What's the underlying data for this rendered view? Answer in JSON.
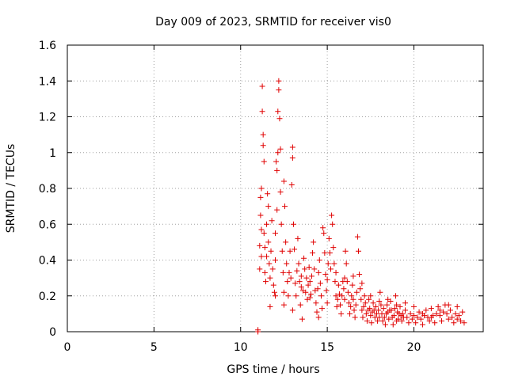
{
  "chart_data": {
    "type": "scatter",
    "title": "Day 009 of 2023, SRMTID for receiver vis0",
    "xlabel": "GPS time / hours",
    "ylabel": "SRMTID / TECUs",
    "xlim": [
      0,
      24
    ],
    "ylim": [
      0,
      1.6
    ],
    "xticks": [
      0,
      5,
      10,
      15,
      20
    ],
    "xtick_labels": [
      "0",
      "5",
      "10",
      "15",
      "20"
    ],
    "yticks": [
      0,
      0.2,
      0.4,
      0.6,
      0.8,
      1,
      1.2,
      1.4,
      1.6
    ],
    "ytick_labels": [
      "0",
      "0.2",
      "0.4",
      "0.6",
      "0.8",
      "1",
      "1.2",
      "1.4",
      "1.6"
    ],
    "grid": true,
    "marker": "+",
    "series": [
      {
        "name": "SRMTID",
        "color": "#e00000",
        "points": [
          [
            11.0,
            0.0
          ],
          [
            11.0,
            0.01
          ],
          [
            11.1,
            0.35
          ],
          [
            11.1,
            0.48
          ],
          [
            11.15,
            0.65
          ],
          [
            11.15,
            0.75
          ],
          [
            11.2,
            0.8
          ],
          [
            11.2,
            0.57
          ],
          [
            11.2,
            0.42
          ],
          [
            11.25,
            1.37
          ],
          [
            11.25,
            1.23
          ],
          [
            11.3,
            1.1
          ],
          [
            11.3,
            1.04
          ],
          [
            11.35,
            0.95
          ],
          [
            11.35,
            0.55
          ],
          [
            11.4,
            0.47
          ],
          [
            11.4,
            0.33
          ],
          [
            11.45,
            0.28
          ],
          [
            11.5,
            0.42
          ],
          [
            11.5,
            0.6
          ],
          [
            11.55,
            0.77
          ],
          [
            11.6,
            0.7
          ],
          [
            11.6,
            0.5
          ],
          [
            11.65,
            0.38
          ],
          [
            11.7,
            0.3
          ],
          [
            11.7,
            0.14
          ],
          [
            11.75,
            0.45
          ],
          [
            11.8,
            0.62
          ],
          [
            11.85,
            0.35
          ],
          [
            11.9,
            0.26
          ],
          [
            11.95,
            0.22
          ],
          [
            12.0,
            0.4
          ],
          [
            12.0,
            0.55
          ],
          [
            12.05,
            0.95
          ],
          [
            12.1,
            0.9
          ],
          [
            12.1,
            0.68
          ],
          [
            12.15,
            1.0
          ],
          [
            12.15,
            1.23
          ],
          [
            12.2,
            1.4
          ],
          [
            12.2,
            1.35
          ],
          [
            12.25,
            1.19
          ],
          [
            12.3,
            1.02
          ],
          [
            12.3,
            0.78
          ],
          [
            12.35,
            0.6
          ],
          [
            12.4,
            0.45
          ],
          [
            12.45,
            0.33
          ],
          [
            12.5,
            0.22
          ],
          [
            12.5,
            0.84
          ],
          [
            12.55,
            0.7
          ],
          [
            12.6,
            0.5
          ],
          [
            12.65,
            0.38
          ],
          [
            12.7,
            0.28
          ],
          [
            12.75,
            0.2
          ],
          [
            12.8,
            0.33
          ],
          [
            12.85,
            0.45
          ],
          [
            12.9,
            0.3
          ],
          [
            12.95,
            0.82
          ],
          [
            13.0,
            1.03
          ],
          [
            13.0,
            0.97
          ],
          [
            13.05,
            0.6
          ],
          [
            13.1,
            0.46
          ],
          [
            13.15,
            0.27
          ],
          [
            13.2,
            0.2
          ],
          [
            13.25,
            0.34
          ],
          [
            13.3,
            0.52
          ],
          [
            13.35,
            0.38
          ],
          [
            13.4,
            0.28
          ],
          [
            13.45,
            0.15
          ],
          [
            13.5,
            0.31
          ],
          [
            13.55,
            0.07
          ],
          [
            13.6,
            0.23
          ],
          [
            13.65,
            0.41
          ],
          [
            13.7,
            0.35
          ],
          [
            13.75,
            0.22
          ],
          [
            13.8,
            0.3
          ],
          [
            13.85,
            0.18
          ],
          [
            13.9,
            0.26
          ],
          [
            13.95,
            0.36
          ],
          [
            14.0,
            0.28
          ],
          [
            14.05,
            0.21
          ],
          [
            14.1,
            0.31
          ],
          [
            14.15,
            0.44
          ],
          [
            14.2,
            0.5
          ],
          [
            14.25,
            0.35
          ],
          [
            14.3,
            0.23
          ],
          [
            14.35,
            0.16
          ],
          [
            14.4,
            0.11
          ],
          [
            14.45,
            0.24
          ],
          [
            14.5,
            0.33
          ],
          [
            14.55,
            0.4
          ],
          [
            14.6,
            0.27
          ],
          [
            14.65,
            0.2
          ],
          [
            14.7,
            0.13
          ],
          [
            14.75,
            0.58
          ],
          [
            14.8,
            0.55
          ],
          [
            14.85,
            0.44
          ],
          [
            14.9,
            0.32
          ],
          [
            14.95,
            0.23
          ],
          [
            15.0,
            0.16
          ],
          [
            15.05,
            0.38
          ],
          [
            15.1,
            0.52
          ],
          [
            15.15,
            0.44
          ],
          [
            15.2,
            0.35
          ],
          [
            15.25,
            0.65
          ],
          [
            15.3,
            0.6
          ],
          [
            15.35,
            0.47
          ],
          [
            15.4,
            0.38
          ],
          [
            15.45,
            0.28
          ],
          [
            15.5,
            0.2
          ],
          [
            15.55,
            0.14
          ],
          [
            15.6,
            0.18
          ],
          [
            15.65,
            0.26
          ],
          [
            15.7,
            0.21
          ],
          [
            15.75,
            0.15
          ],
          [
            15.8,
            0.1
          ],
          [
            15.85,
            0.2
          ],
          [
            15.9,
            0.28
          ],
          [
            15.95,
            0.24
          ],
          [
            16.0,
            0.18
          ],
          [
            16.05,
            0.45
          ],
          [
            16.1,
            0.38
          ],
          [
            16.15,
            0.28
          ],
          [
            16.2,
            0.22
          ],
          [
            16.25,
            0.16
          ],
          [
            16.3,
            0.1
          ],
          [
            16.35,
            0.14
          ],
          [
            16.4,
            0.2
          ],
          [
            16.45,
            0.26
          ],
          [
            16.5,
            0.18
          ],
          [
            16.55,
            0.12
          ],
          [
            16.6,
            0.08
          ],
          [
            16.65,
            0.15
          ],
          [
            16.7,
            0.22
          ],
          [
            16.75,
            0.53
          ],
          [
            16.8,
            0.45
          ],
          [
            16.85,
            0.32
          ],
          [
            16.9,
            0.24
          ],
          [
            16.95,
            0.18
          ],
          [
            17.0,
            0.12
          ],
          [
            17.05,
            0.08
          ],
          [
            17.1,
            0.14
          ],
          [
            17.15,
            0.2
          ],
          [
            17.2,
            0.16
          ],
          [
            17.25,
            0.1
          ],
          [
            17.3,
            0.06
          ],
          [
            17.35,
            0.12
          ],
          [
            17.4,
            0.18
          ],
          [
            17.45,
            0.13
          ],
          [
            17.5,
            0.09
          ],
          [
            17.55,
            0.05
          ],
          [
            17.6,
            0.11
          ],
          [
            17.65,
            0.16
          ],
          [
            17.7,
            0.12
          ],
          [
            17.75,
            0.08
          ],
          [
            17.8,
            0.14
          ],
          [
            17.85,
            0.1
          ],
          [
            17.9,
            0.06
          ],
          [
            17.95,
            0.12
          ],
          [
            18.0,
            0.17
          ],
          [
            18.05,
            0.22
          ],
          [
            18.1,
            0.15
          ],
          [
            18.15,
            0.1
          ],
          [
            18.2,
            0.06
          ],
          [
            18.25,
            0.13
          ],
          [
            18.3,
            0.08
          ],
          [
            18.35,
            0.04
          ],
          [
            18.4,
            0.1
          ],
          [
            18.45,
            0.15
          ],
          [
            18.5,
            0.11
          ],
          [
            18.55,
            0.07
          ],
          [
            18.6,
            0.12
          ],
          [
            18.65,
            0.17
          ],
          [
            18.7,
            0.12
          ],
          [
            18.75,
            0.08
          ],
          [
            18.8,
            0.04
          ],
          [
            18.85,
            0.09
          ],
          [
            18.9,
            0.13
          ],
          [
            18.95,
            0.2
          ],
          [
            19.0,
            0.15
          ],
          [
            19.05,
            0.11
          ],
          [
            19.1,
            0.07
          ],
          [
            19.15,
            0.1
          ],
          [
            19.2,
            0.14
          ],
          [
            19.25,
            0.09
          ],
          [
            19.3,
            0.06
          ],
          [
            19.35,
            0.1
          ],
          [
            19.4,
            0.08
          ],
          [
            19.5,
            0.12
          ],
          [
            19.6,
            0.08
          ],
          [
            19.7,
            0.05
          ],
          [
            19.8,
            0.1
          ],
          [
            19.9,
            0.07
          ],
          [
            20.0,
            0.09
          ],
          [
            20.1,
            0.05
          ],
          [
            20.2,
            0.08
          ],
          [
            20.3,
            0.11
          ],
          [
            20.4,
            0.07
          ],
          [
            20.5,
            0.04
          ],
          [
            20.6,
            0.09
          ],
          [
            20.7,
            0.12
          ],
          [
            20.8,
            0.08
          ],
          [
            20.9,
            0.06
          ],
          [
            21.0,
            0.13
          ],
          [
            21.1,
            0.09
          ],
          [
            21.2,
            0.05
          ],
          [
            21.3,
            0.1
          ],
          [
            21.4,
            0.14
          ],
          [
            21.5,
            0.09
          ],
          [
            21.6,
            0.06
          ],
          [
            21.7,
            0.11
          ],
          [
            21.8,
            0.15
          ],
          [
            21.9,
            0.1
          ],
          [
            22.0,
            0.07
          ],
          [
            22.1,
            0.12
          ],
          [
            22.2,
            0.08
          ],
          [
            22.3,
            0.05
          ],
          [
            22.4,
            0.1
          ],
          [
            22.5,
            0.14
          ],
          [
            22.6,
            0.09
          ],
          [
            22.7,
            0.06
          ],
          [
            22.8,
            0.11
          ],
          [
            22.9,
            0.05
          ],
          [
            12.0,
            0.2
          ],
          [
            12.5,
            0.15
          ],
          [
            13.0,
            0.12
          ],
          [
            13.5,
            0.25
          ],
          [
            14.0,
            0.19
          ],
          [
            14.5,
            0.08
          ],
          [
            15.0,
            0.29
          ],
          [
            15.5,
            0.33
          ],
          [
            16.0,
            0.3
          ],
          [
            16.5,
            0.31
          ],
          [
            17.0,
            0.27
          ],
          [
            17.5,
            0.2
          ],
          [
            18.0,
            0.08
          ],
          [
            18.5,
            0.18
          ],
          [
            19.0,
            0.06
          ],
          [
            19.5,
            0.16
          ],
          [
            20.0,
            0.14
          ],
          [
            20.5,
            0.1
          ],
          [
            21.0,
            0.08
          ],
          [
            21.5,
            0.12
          ],
          [
            22.0,
            0.15
          ],
          [
            22.5,
            0.07
          ]
        ]
      }
    ]
  }
}
